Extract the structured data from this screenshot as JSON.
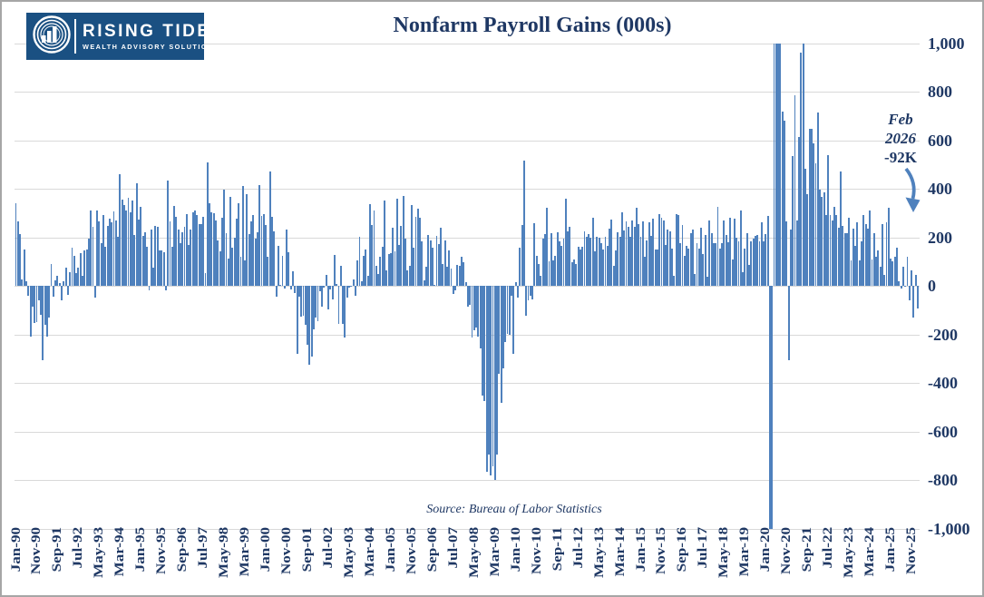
{
  "logo": {
    "line1": "RISING TIDE",
    "line2": "WEALTH ADVISORY SOLUTIONS"
  },
  "title": "Nonfarm Payroll Gains (000s)",
  "annotation": {
    "line1": "Feb",
    "line2": "2026",
    "line3": "-92K"
  },
  "source": "Source: Bureau of Labor Statistics",
  "colors": {
    "bar": "#4f81bd",
    "navy_text": "#1f3864",
    "gridline": "#d9d9d9",
    "logo_bg": "#1a5082",
    "arrow": "#4f81bd",
    "frame_border": "#a6a6a6"
  },
  "y_axis": {
    "labels": [
      "1,000",
      "800",
      "600",
      "400",
      "200",
      "0",
      "-200",
      "-400",
      "-600",
      "-800",
      "-1,000"
    ],
    "values": [
      1000,
      800,
      600,
      400,
      200,
      0,
      -200,
      -400,
      -600,
      -800,
      -1000
    ]
  },
  "chart_data": {
    "type": "bar",
    "title": "Nonfarm Payroll Gains (000s)",
    "xlabel": "",
    "ylabel": "",
    "unit": "thousands of jobs, monthly change",
    "ylim": [
      -1000,
      1000
    ],
    "grid": true,
    "values_clipped_to_ylim": true,
    "start_month": "Jan-1990",
    "end_month": "Feb-2026",
    "x_tick_interval_months": 10,
    "x_tick_labels": [
      "Jan-90",
      "Nov-90",
      "Sep-91",
      "Jul-92",
      "May-93",
      "Mar-94",
      "Jan-95",
      "Nov-95",
      "Sep-96",
      "Jul-97",
      "May-98",
      "Mar-99",
      "Jan-00",
      "Nov-00",
      "Sep-01",
      "Jul-02",
      "May-03",
      "Mar-04",
      "Jan-05",
      "Nov-05",
      "Sep-06",
      "Jul-07",
      "May-08",
      "Mar-09",
      "Jan-10",
      "Nov-10",
      "Sep-11",
      "Jul-12",
      "May-13",
      "Mar-14",
      "Jan-15",
      "Nov-15",
      "Sep-16",
      "Jul-17",
      "May-18",
      "Mar-19",
      "Jan-20",
      "Nov-20",
      "Sep-21",
      "Jul-22",
      "May-23",
      "Mar-24",
      "Jan-25",
      "Nov-25"
    ],
    "annotated_point": {
      "month": "Feb-2026",
      "value": -92,
      "label": "Feb 2026 -92K"
    },
    "values": [
      342,
      264,
      212,
      28,
      150,
      17,
      -42,
      -208,
      -86,
      -153,
      -148,
      -59,
      -120,
      -306,
      -160,
      -211,
      -129,
      89,
      -43,
      24,
      43,
      12,
      -59,
      19,
      75,
      -37,
      55,
      156,
      123,
      52,
      74,
      133,
      41,
      146,
      151,
      196,
      310,
      242,
      -50,
      309,
      265,
      176,
      291,
      160,
      245,
      277,
      261,
      306,
      271,
      202,
      461,
      355,
      332,
      309,
      364,
      302,
      353,
      209,
      423,
      274,
      326,
      207,
      220,
      161,
      -17,
      231,
      76,
      247,
      244,
      147,
      145,
      138,
      -19,
      434,
      264,
      161,
      328,
      284,
      231,
      176,
      220,
      243,
      296,
      167,
      233,
      301,
      311,
      292,
      256,
      256,
      284,
      54,
      508,
      339,
      301,
      298,
      270,
      187,
      143,
      281,
      397,
      216,
      111,
      365,
      157,
      199,
      277,
      342,
      121,
      412,
      106,
      376,
      213,
      266,
      293,
      196,
      220,
      415,
      289,
      294,
      249,
      121,
      472,
      286,
      225,
      -46,
      163,
      3,
      122,
      -11,
      231,
      138,
      -16,
      61,
      -30,
      -281,
      -44,
      -128,
      -125,
      -160,
      -244,
      -325,
      -292,
      -178,
      -132,
      -147,
      -24,
      -85,
      -7,
      45,
      -97,
      -16,
      -55,
      126,
      8,
      -156,
      83,
      -158,
      -212,
      -49,
      -6,
      -2,
      25,
      -42,
      103,
      203,
      18,
      124,
      150,
      43,
      338,
      250,
      310,
      81,
      47,
      121,
      160,
      351,
      64,
      132,
      136,
      240,
      142,
      360,
      169,
      246,
      369,
      195,
      63,
      84,
      334,
      158,
      283,
      317,
      280,
      182,
      22,
      78,
      208,
      188,
      158,
      2,
      205,
      171,
      238,
      88,
      188,
      78,
      144,
      71,
      -33,
      -18,
      85,
      82,
      118,
      97,
      15,
      -86,
      -80,
      -214,
      -182,
      -172,
      -210,
      -259,
      -452,
      -474,
      -765,
      -697,
      -783,
      -743,
      -800,
      -695,
      -361,
      -482,
      -339,
      -231,
      -199,
      -202,
      -42,
      -279,
      16,
      -50,
      156,
      251,
      516,
      -122,
      -61,
      -42,
      -57,
      257,
      123,
      88,
      43,
      196,
      212,
      322,
      102,
      217,
      106,
      122,
      221,
      183,
      164,
      196,
      360,
      226,
      243,
      96,
      110,
      88,
      160,
      150,
      161,
      225,
      203,
      214,
      197,
      280,
      141,
      203,
      199,
      177,
      149,
      202,
      164,
      237,
      274,
      84,
      144,
      222,
      203,
      304,
      229,
      267,
      243,
      203,
      271,
      243,
      321,
      256,
      201,
      266,
      119,
      187,
      260,
      206,
      277,
      150,
      149,
      295,
      280,
      271,
      168,
      233,
      225,
      153,
      43,
      297,
      291,
      176,
      249,
      124,
      164,
      155,
      216,
      232,
      50,
      175,
      155,
      239,
      130,
      208,
      38,
      271,
      216,
      175,
      176,
      324,
      155,
      175,
      268,
      208,
      178,
      282,
      108,
      277,
      197,
      182,
      312,
      56,
      153,
      216,
      85,
      182,
      194,
      207,
      208,
      185,
      261,
      184,
      214,
      289,
      -1383,
      -20493,
      2833,
      4846,
      1726,
      1583,
      716,
      680,
      264,
      -306,
      233,
      536,
      785,
      269,
      614,
      962,
      1091,
      483,
      379,
      648,
      647,
      588,
      504,
      714,
      398,
      368,
      386,
      293,
      537,
      292,
      269,
      324,
      290,
      239,
      472,
      248,
      217,
      217,
      281,
      105,
      236,
      165,
      262,
      105,
      182,
      290,
      256,
      236,
      310,
      108,
      216,
      118,
      144,
      78,
      255,
      44,
      261,
      323,
      111,
      102,
      120,
      158,
      19,
      -13,
      79,
      -4,
      119,
      -60,
      64,
      -130,
      45,
      -92
    ]
  }
}
